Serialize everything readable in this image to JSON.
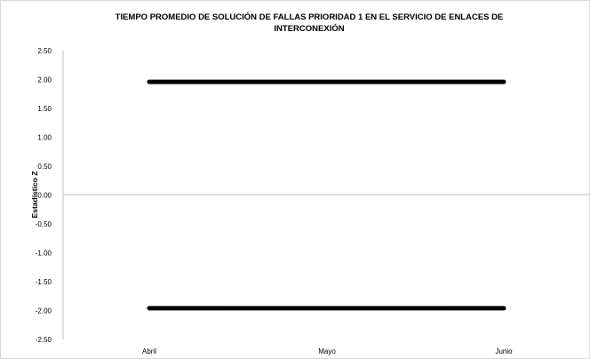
{
  "chart_data": {
    "type": "line",
    "title_lines": [
      "TIEMPO PROMEDIO DE SOLUCIÓN DE FALLAS PRIORIDAD 1 EN EL SERVICIO DE ENLACES DE",
      "INTERCONEXIÓN"
    ],
    "xlabel": "",
    "ylabel": "Estadístico Z",
    "categories": [
      "Abril",
      "Mayo",
      "Junio"
    ],
    "ylim": [
      -2.5,
      2.5
    ],
    "yticks": [
      "2.50",
      "2.00",
      "1.50",
      "1.00",
      "0.50",
      "0.00",
      "-0.50",
      "-1.00",
      "-1.50",
      "-2.00",
      "-2.50"
    ],
    "series": [
      {
        "values": [
          1.96,
          1.96,
          1.96
        ],
        "color": "#000000"
      },
      {
        "values": [
          -1.96,
          -1.96,
          -1.96
        ],
        "color": "#000000"
      }
    ],
    "grid": false,
    "legend": "none"
  }
}
